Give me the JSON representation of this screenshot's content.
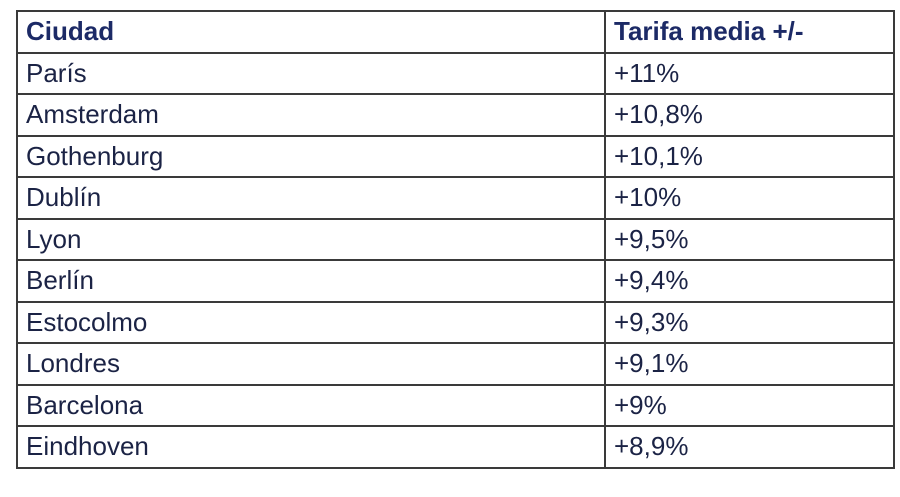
{
  "table": {
    "header": [
      "Ciudad",
      "Tarifa media +/-"
    ],
    "rows": [
      [
        "París",
        "+11%"
      ],
      [
        "Amsterdam",
        "+10,8%"
      ],
      [
        "Gothenburg",
        "+10,1%"
      ],
      [
        "Dublín",
        "+10%"
      ],
      [
        "Lyon",
        "+9,5%"
      ],
      [
        "Berlín",
        "+9,4%"
      ],
      [
        "Estocolmo",
        "+9,3%"
      ],
      [
        "Londres",
        "+9,1%"
      ],
      [
        "Barcelona",
        "+9%"
      ],
      [
        "Eindhoven",
        "+8,9%"
      ]
    ]
  }
}
